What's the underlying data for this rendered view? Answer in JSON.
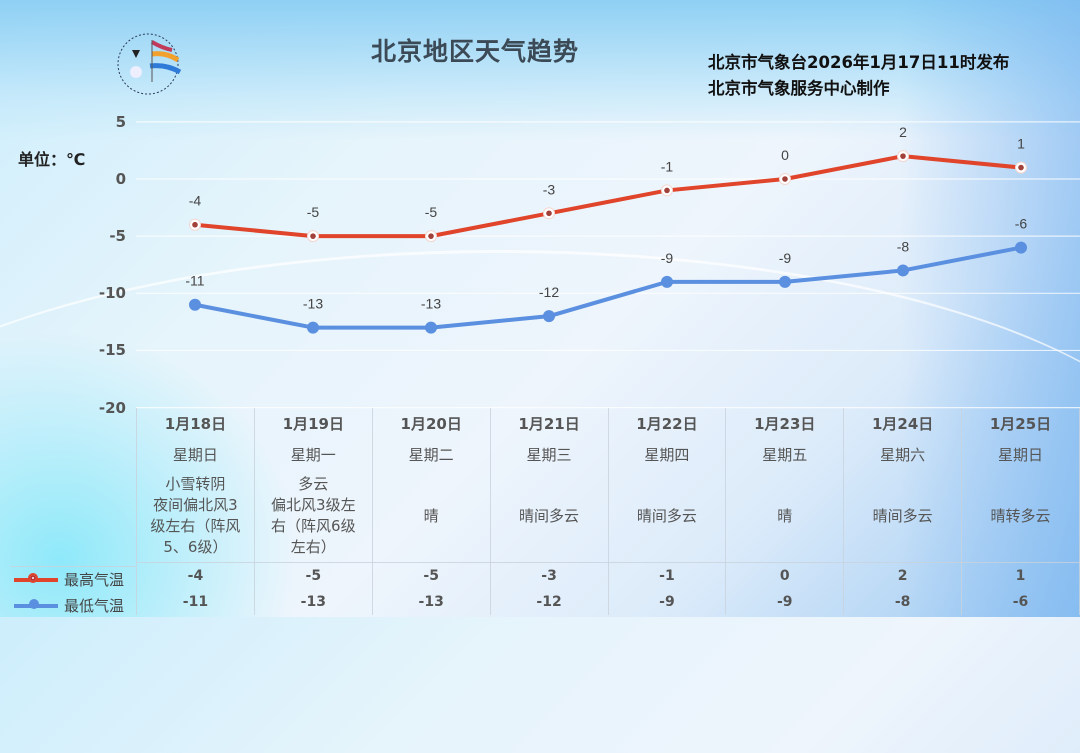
{
  "header": {
    "title": "北京地区天气趋势",
    "issuer_line1": "北京市气象台2026年1月17日11时发布",
    "issuer_line2": "北京市气象服务中心制作",
    "unit_label": "单位：℃",
    "logo_text": "METEOROLOGICAL SERVICE"
  },
  "colors": {
    "high": "#e0452b",
    "low": "#5b8fe0"
  },
  "legend": {
    "high_label": "最高气温",
    "low_label": "最低气温"
  },
  "y_ticks": [
    "5",
    "0",
    "-5",
    "-10",
    "-15",
    "-20"
  ],
  "days": [
    {
      "date": "1月18日",
      "weekday": "星期日",
      "desc": "小雪转阴 夜间偏北风3级左右（阵风5、6级）",
      "desc_lines": [
        "小雪转阴",
        "夜间偏北风3",
        "级左右（阵风",
        "5、6级）"
      ],
      "high": "-4",
      "low": "-11"
    },
    {
      "date": "1月19日",
      "weekday": "星期一",
      "desc": "多云 偏北风3级左右（阵风6级左右）",
      "desc_lines": [
        "多云",
        "偏北风3级左",
        "右（阵风6级",
        "左右）"
      ],
      "high": "-5",
      "low": "-13"
    },
    {
      "date": "1月20日",
      "weekday": "星期二",
      "desc": "晴",
      "desc_lines": [
        "晴"
      ],
      "high": "-5",
      "low": "-13"
    },
    {
      "date": "1月21日",
      "weekday": "星期三",
      "desc": "晴间多云",
      "desc_lines": [
        "晴间多云"
      ],
      "high": "-3",
      "low": "-12"
    },
    {
      "date": "1月22日",
      "weekday": "星期四",
      "desc": "晴间多云",
      "desc_lines": [
        "晴间多云"
      ],
      "high": "-1",
      "low": "-9"
    },
    {
      "date": "1月23日",
      "weekday": "星期五",
      "desc": "晴",
      "desc_lines": [
        "晴"
      ],
      "high": "0",
      "low": "-9"
    },
    {
      "date": "1月24日",
      "weekday": "星期六",
      "desc": "晴间多云",
      "desc_lines": [
        "晴间多云"
      ],
      "high": "2",
      "low": "-8"
    },
    {
      "date": "1月25日",
      "weekday": "星期日",
      "desc": "晴转多云",
      "desc_lines": [
        "晴转多云"
      ],
      "high": "1",
      "low": "-6"
    }
  ],
  "chart_data": {
    "type": "line",
    "title": "北京地区天气趋势",
    "xlabel": "",
    "ylabel": "单位：℃",
    "categories": [
      "1月18日",
      "1月19日",
      "1月20日",
      "1月21日",
      "1月22日",
      "1月23日",
      "1月24日",
      "1月25日"
    ],
    "series": [
      {
        "name": "最高气温",
        "color": "#e0452b",
        "values": [
          -4,
          -5,
          -5,
          -3,
          -1,
          0,
          2,
          1
        ]
      },
      {
        "name": "最低气温",
        "color": "#5b8fe0",
        "values": [
          -11,
          -13,
          -13,
          -12,
          -9,
          -9,
          -8,
          -6
        ]
      }
    ],
    "ylim": [
      -20,
      5
    ],
    "yticks": [
      5,
      0,
      -5,
      -10,
      -15,
      -20
    ],
    "grid": true,
    "data_labels": true,
    "legend_position": "bottom-left (table legend)"
  }
}
